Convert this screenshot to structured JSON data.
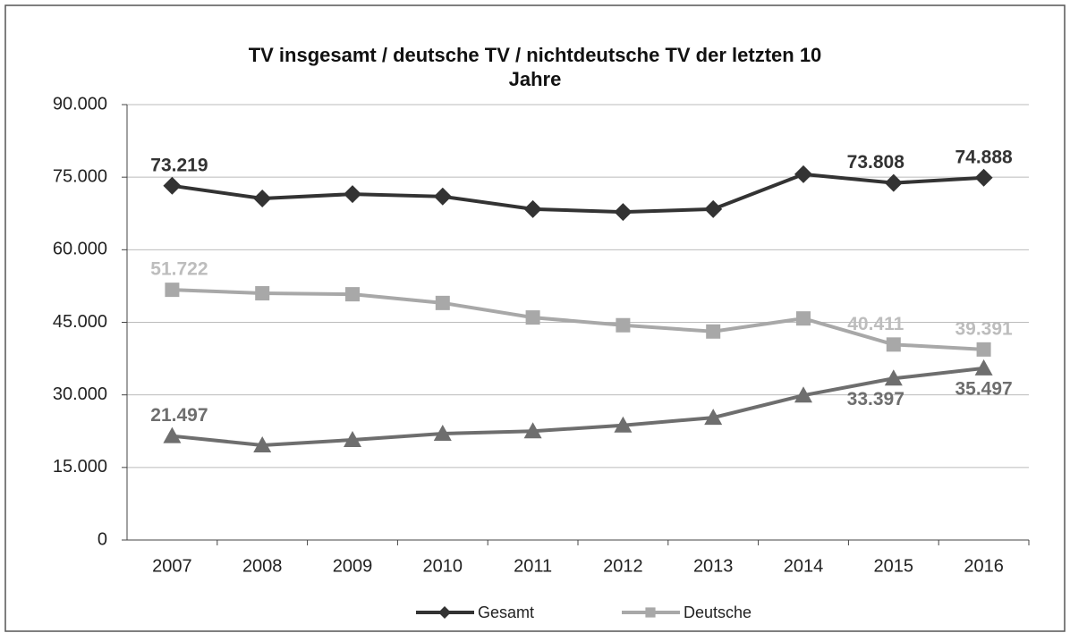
{
  "chart_data": {
    "type": "line",
    "title": "TV insgesamt / deutsche TV / nichtdeutsche TV der letzten 10 Jahre",
    "categories": [
      "2007",
      "2008",
      "2009",
      "2010",
      "2011",
      "2012",
      "2013",
      "2014",
      "2015",
      "2016"
    ],
    "series": [
      {
        "name": "Gesamt",
        "color": "#333333",
        "marker": "diamond",
        "values": [
          73219,
          70600,
          71500,
          71000,
          68400,
          67800,
          68400,
          75600,
          73808,
          74888
        ],
        "value_labels": [
          "73.219",
          null,
          null,
          null,
          null,
          null,
          null,
          null,
          "73.808",
          "74.888"
        ]
      },
      {
        "name": "Deutsche",
        "color": "#a8a8a8",
        "marker": "square",
        "values": [
          51722,
          51000,
          50800,
          49000,
          46000,
          44400,
          43100,
          45800,
          40411,
          39391
        ],
        "value_labels": [
          "51.722",
          null,
          null,
          null,
          null,
          null,
          null,
          null,
          "40.411",
          "39.391"
        ]
      },
      {
        "color": "#6e6e6e",
        "marker": "triangle",
        "values": [
          21497,
          19600,
          20700,
          22000,
          22500,
          23700,
          25300,
          29900,
          33397,
          35497
        ],
        "value_labels": [
          "21.497",
          null,
          null,
          null,
          null,
          null,
          null,
          null,
          "33.397",
          "35.497"
        ]
      }
    ],
    "ylim": [
      0,
      90000
    ],
    "yticks": [
      0,
      {
        "value": 15000,
        "label": "15.000"
      },
      {
        "value": 30000,
        "label": "30.000"
      },
      {
        "value": 45000,
        "label": "45.000"
      },
      {
        "value": 60000,
        "label": "60.000"
      },
      {
        "value": 75000,
        "label": "75.000"
      },
      {
        "value": 90000,
        "label": "90.000"
      }
    ],
    "grid": true,
    "legend": "bottom"
  }
}
